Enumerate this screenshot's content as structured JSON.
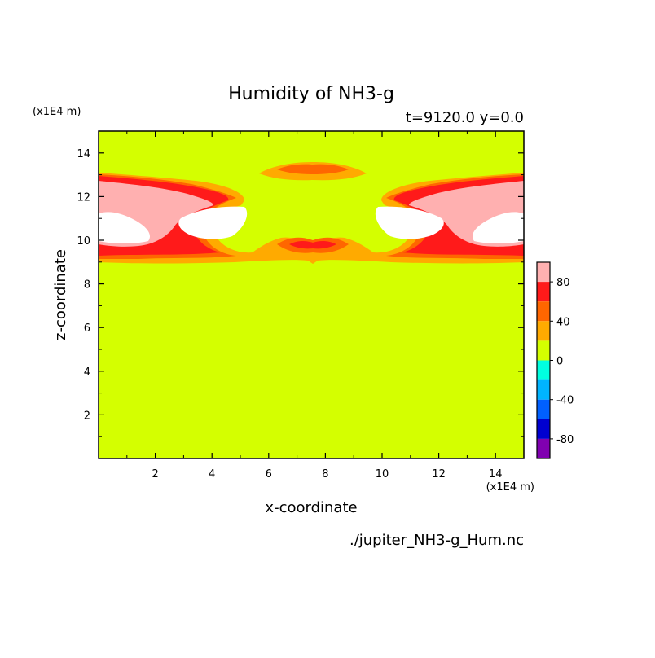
{
  "chart_data": {
    "type": "heatmap",
    "title": "Humidity of NH3-g",
    "subtitle": "t=9120.0 y=0.0",
    "xlabel": "x-coordinate",
    "ylabel": "z-coordinate",
    "x_unit": "(x1E4 m)",
    "y_unit": "(x1E4 m)",
    "source": "./jupiter_NH3-g_Hum.nc",
    "xlim": [
      0,
      15
    ],
    "ylim": [
      0,
      15
    ],
    "x_ticks": [
      2,
      4,
      6,
      8,
      10,
      12,
      14
    ],
    "y_ticks": [
      2,
      4,
      6,
      8,
      10,
      12,
      14
    ],
    "background_level_color": "#d4ff00",
    "colorbar": {
      "levels": [
        {
          "from": 80,
          "to": 100,
          "color": "#ffb0b0"
        },
        {
          "from": 60,
          "to": 80,
          "color": "#ff1a1a"
        },
        {
          "from": 40,
          "to": 60,
          "color": "#ff6600"
        },
        {
          "from": 20,
          "to": 40,
          "color": "#ffaa00"
        },
        {
          "from": 0,
          "to": 20,
          "color": "#d4ff00"
        },
        {
          "from": -20,
          "to": 0,
          "color": "#00ffe0"
        },
        {
          "from": -40,
          "to": -20,
          "color": "#00b4ff"
        },
        {
          "from": -60,
          "to": -40,
          "color": "#0060ff"
        },
        {
          "from": -80,
          "to": -60,
          "color": "#0000d0"
        },
        {
          "from": -100,
          "to": -80,
          "color": "#8000b0"
        }
      ],
      "tick_labels": [
        "80",
        "40",
        "0",
        "-40",
        "-80"
      ],
      "tick_values": [
        80,
        40,
        0,
        -40,
        -80
      ],
      "above_max_color": "#ffffff"
    }
  }
}
